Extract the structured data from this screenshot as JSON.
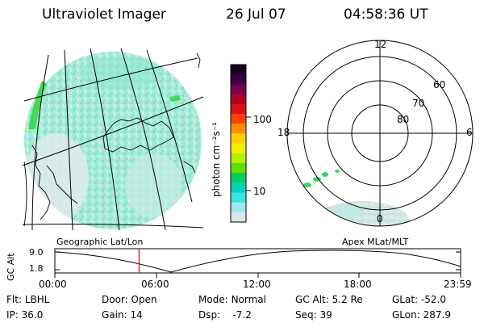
{
  "header": {
    "instrument": "Ultraviolet Imager",
    "date": "26 Jul 07",
    "time": "04:58:36 UT"
  },
  "colorbar": {
    "unit_label": "photon cm⁻²s⁻¹",
    "ticks": [
      "100",
      "10"
    ],
    "colors": [
      "#1a0020",
      "#3a0040",
      "#7a0050",
      "#b00020",
      "#e01010",
      "#ff4000",
      "#ff9000",
      "#ffd000",
      "#f0f000",
      "#b0f000",
      "#60e000",
      "#00d060",
      "#00d0c0",
      "#40e0e0",
      "#a0e8e8",
      "#d8e8e8"
    ]
  },
  "polar_plot": {
    "mlt_labels": [
      "12",
      "18",
      "6",
      "0"
    ],
    "mlat_labels": [
      "60",
      "70",
      "80"
    ]
  },
  "panels": {
    "left_caption": "Geographic Lat/Lon",
    "right_caption": "Apex MLat/MLT"
  },
  "altitude_plot": {
    "ylabel": "GC Alt",
    "yticks": [
      "9.0",
      "1.8"
    ],
    "xticks": [
      "00:00",
      "06:00",
      "12:00",
      "18:00",
      "23:59"
    ],
    "marker_time": "04:58:36",
    "marker_color": "#ff0000"
  },
  "status": [
    {
      "label": "Flt:",
      "value": "LBHL"
    },
    {
      "label": "IP:",
      "value": "36.0"
    },
    {
      "label": "Door:",
      "value": "Open"
    },
    {
      "label": "Gain:",
      "value": "14"
    },
    {
      "label": "Mode:",
      "value": "Normal"
    },
    {
      "label": "Dsp:",
      "value": "-7.2"
    },
    {
      "label": "GC Alt:",
      "value": "5.2 Re"
    },
    {
      "label": "Seq:",
      "value": "39"
    },
    {
      "label": "GLat:",
      "value": "-52.0"
    },
    {
      "label": "GLon:",
      "value": "287.9"
    }
  ]
}
